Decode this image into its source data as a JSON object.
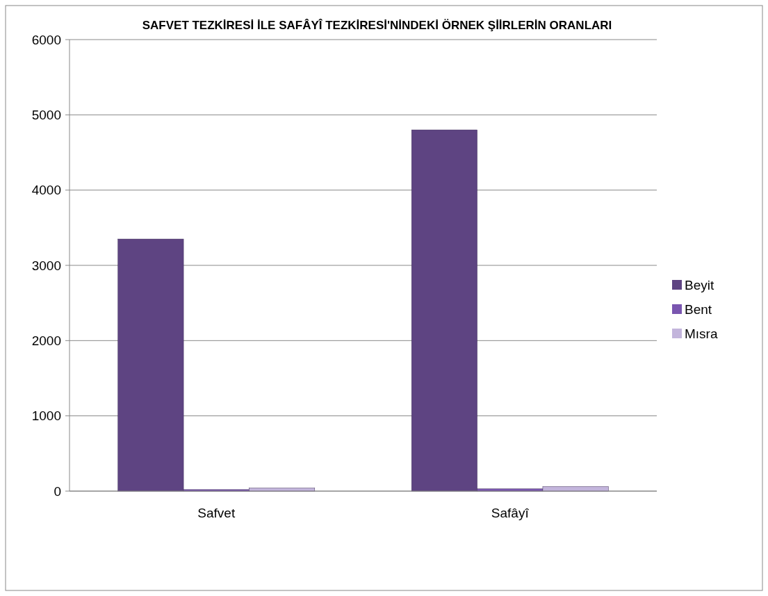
{
  "chart_data": {
    "type": "bar",
    "title": "SAFVET TEZKİRESİ İLE SAFÂYÎ  TEZKİRESİ'NİNDEKİ ÖRNEK ŞİİRLERİN ORANLARI",
    "categories": [
      "Safvet",
      "Safâyî"
    ],
    "series": [
      {
        "name": "Beyit",
        "color": "#5e4482",
        "values": [
          3350,
          4800
        ]
      },
      {
        "name": "Bent",
        "color": "#7a56b0",
        "values": [
          20,
          30
        ]
      },
      {
        "name": "Mısra",
        "color": "#c3b5dc",
        "values": [
          40,
          60
        ]
      }
    ],
    "ylim": [
      0,
      6000
    ],
    "yticks": [
      0,
      1000,
      2000,
      3000,
      4000,
      5000,
      6000
    ],
    "grid": "y",
    "legend": "right"
  }
}
